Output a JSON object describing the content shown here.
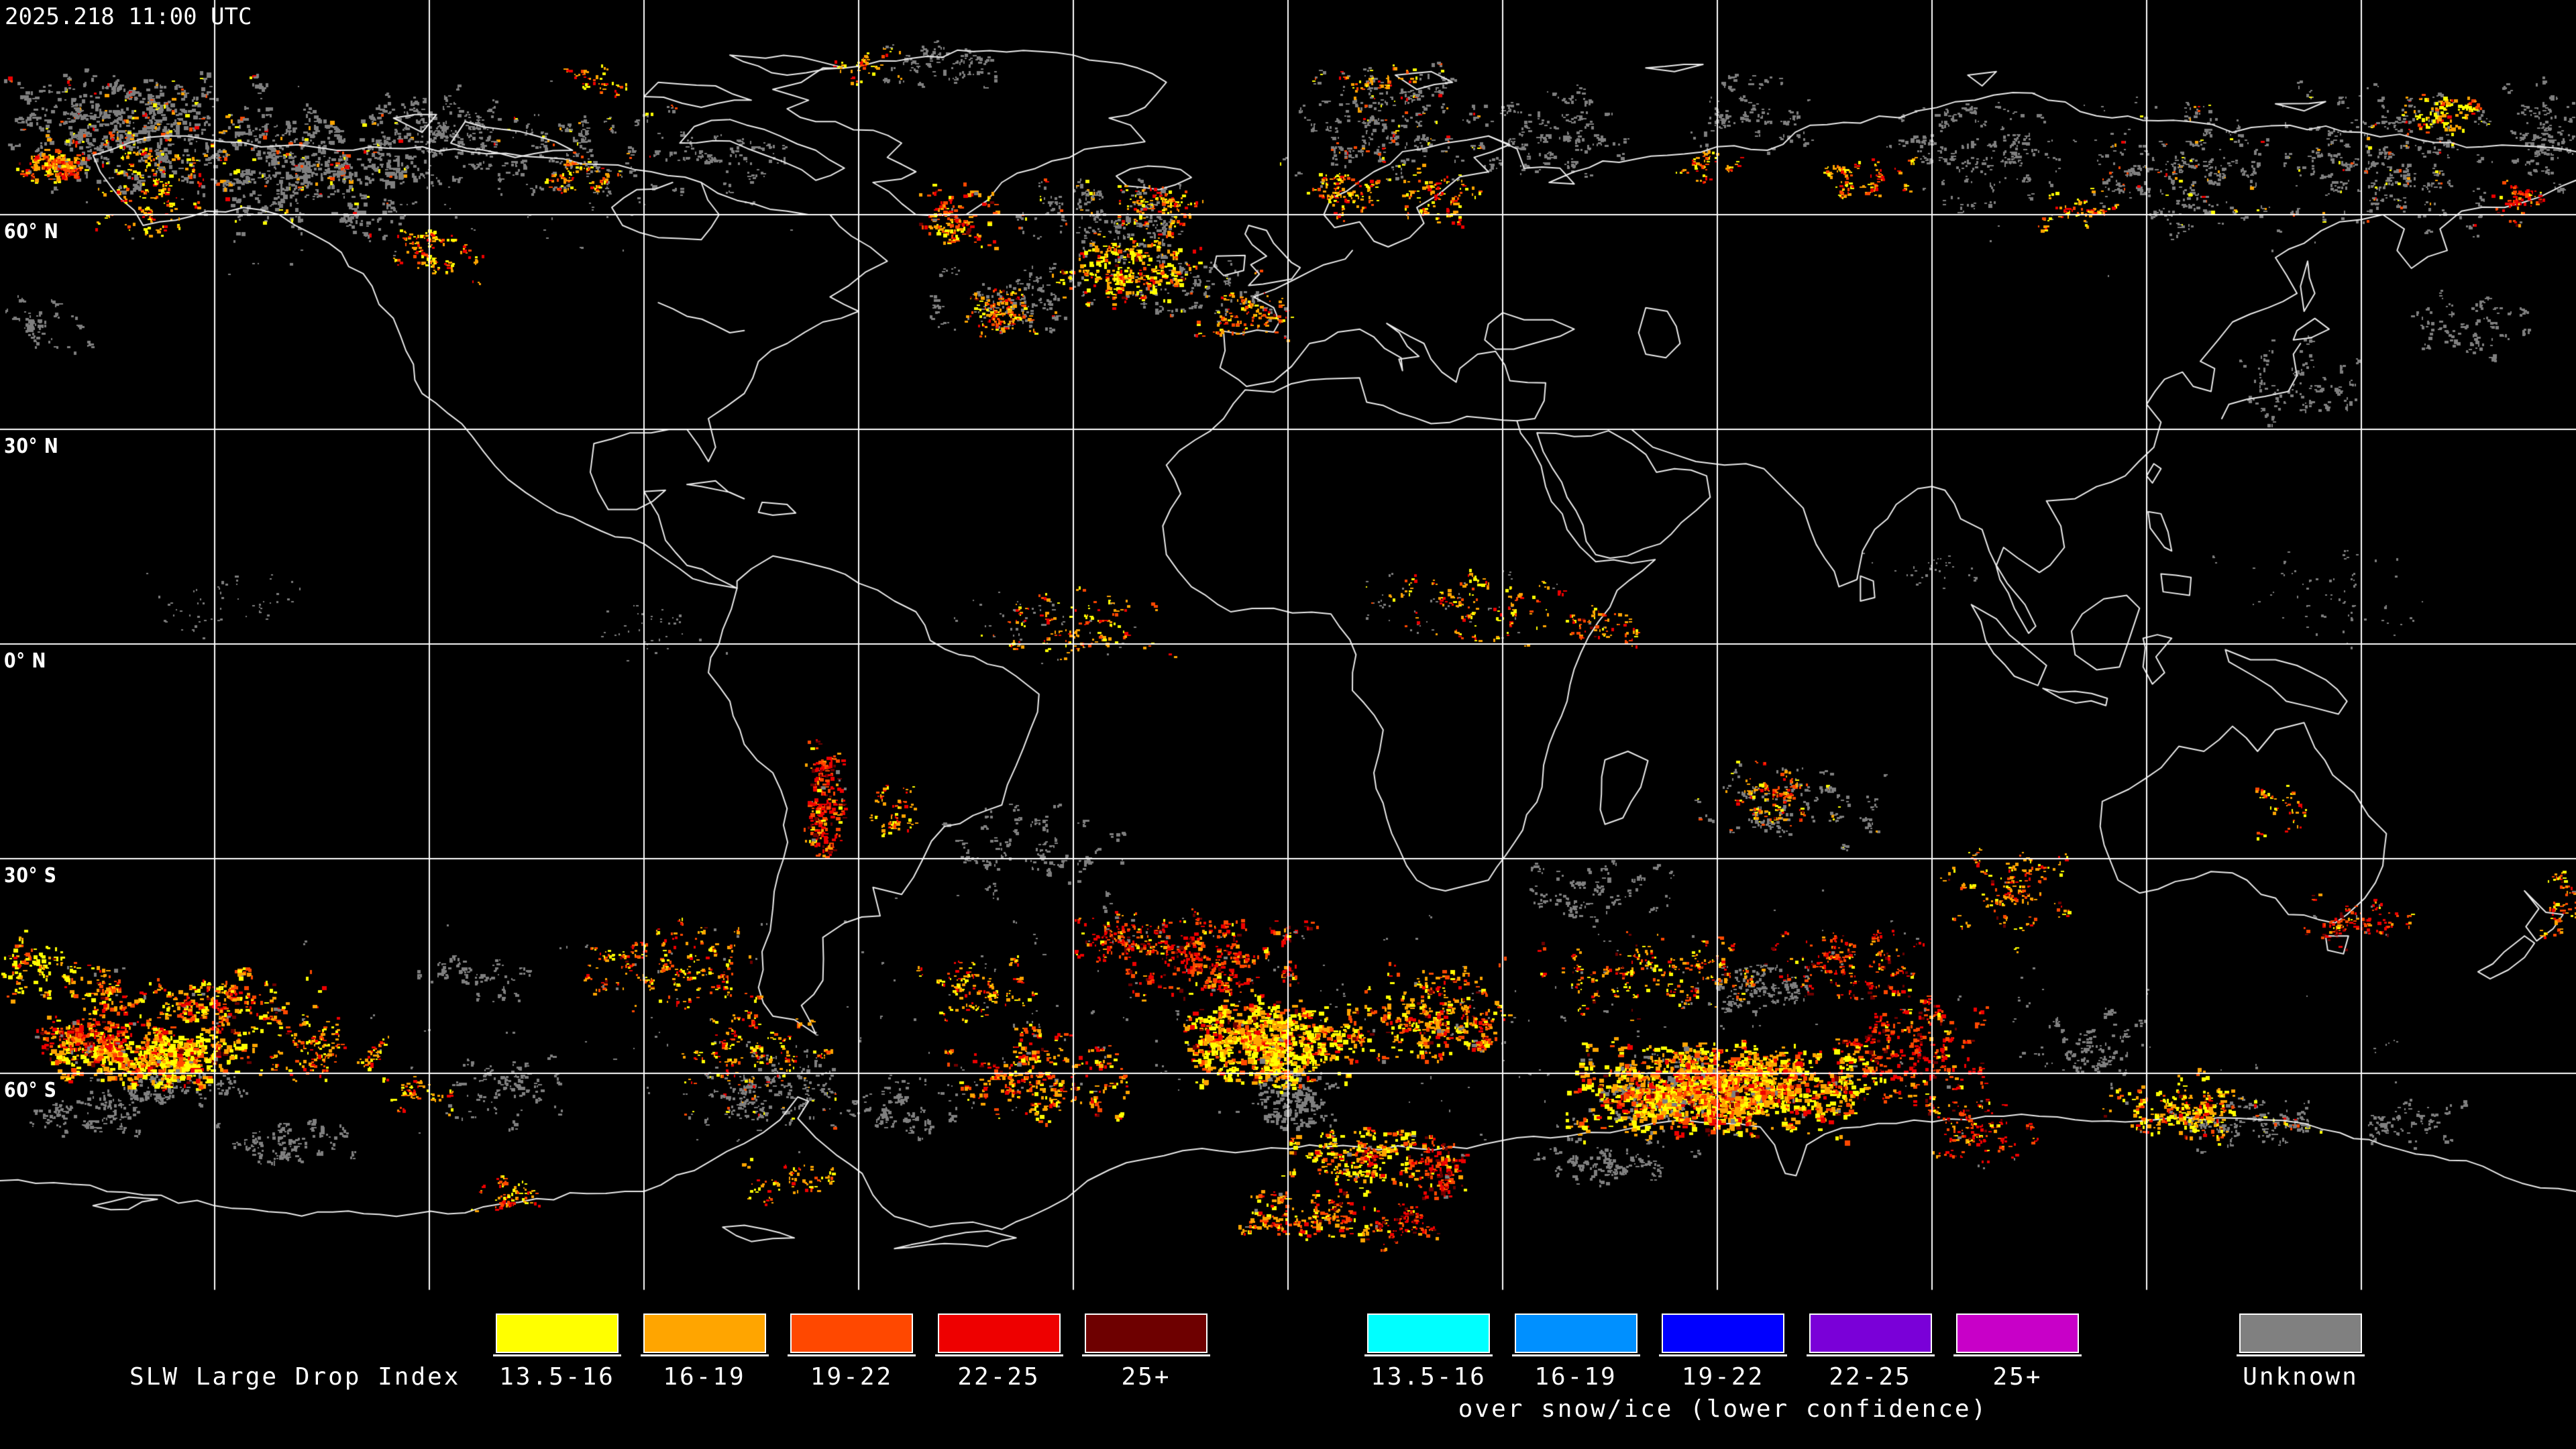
{
  "header": {
    "timestamp": "2025.218 11:00 UTC"
  },
  "map": {
    "latitude_labels": [
      {
        "label": "60° N",
        "lat": 60
      },
      {
        "label": "30° N",
        "lat": 30
      },
      {
        "label": "0° N",
        "lat": 0
      },
      {
        "label": "30° S",
        "lat": -30
      },
      {
        "label": "60° S",
        "lat": -60
      }
    ],
    "grid": {
      "lat_lines_deg": [
        60,
        30,
        0,
        -30,
        -60
      ],
      "lon_lines_deg": [
        -150,
        -120,
        -90,
        -60,
        -30,
        0,
        30,
        60,
        90,
        120,
        150
      ]
    },
    "colors": {
      "background": "#000000",
      "coastline": "#ECECEC",
      "gridline": "#FFFFFF",
      "index_13_16": "#FFFF00",
      "index_16_19": "#FFA500",
      "index_19_22": "#FF4800",
      "index_22_25": "#EE0000",
      "index_25plus": "#6E0000",
      "unknown": "#7F7F7F"
    },
    "palettes": {
      "gy": [
        [
          "#7F7F7F",
          1
        ]
      ],
      "gm": [
        [
          "#7F7F7F",
          0.86
        ],
        [
          "#FFFF00",
          0.05
        ],
        [
          "#FFA500",
          0.04
        ],
        [
          "#FF4800",
          0.03
        ],
        [
          "#EE0000",
          0.02
        ]
      ],
      "wc": [
        [
          "#FFFF00",
          0.44
        ],
        [
          "#FFA500",
          0.3
        ],
        [
          "#FF4800",
          0.14
        ],
        [
          "#EE0000",
          0.07
        ],
        [
          "#6E0000",
          0.03
        ],
        [
          "#7F7F7F",
          0.02
        ]
      ],
      "wm": [
        [
          "#FFA500",
          0.34
        ],
        [
          "#FF4800",
          0.26
        ],
        [
          "#FFFF00",
          0.18
        ],
        [
          "#EE0000",
          0.14
        ],
        [
          "#6E0000",
          0.05
        ],
        [
          "#7F7F7F",
          0.03
        ]
      ],
      "wr": [
        [
          "#EE0000",
          0.36
        ],
        [
          "#FF4800",
          0.28
        ],
        [
          "#6E0000",
          0.14
        ],
        [
          "#FFA500",
          0.14
        ],
        [
          "#FFFF00",
          0.05
        ],
        [
          "#7F7F7F",
          0.03
        ]
      ],
      "ws": [
        [
          "#FFA500",
          0.4
        ],
        [
          "#FFFF00",
          0.26
        ],
        [
          "#EE0000",
          0.18
        ],
        [
          "#FF4800",
          0.16
        ]
      ]
    },
    "regions": {
      "unknown": [
        [
          200,
          200,
          210,
          95,
          240,
          5,
          "gm"
        ],
        [
          470,
          255,
          170,
          110,
          170,
          5,
          "gm"
        ],
        [
          650,
          195,
          120,
          80,
          80,
          4,
          "gy"
        ],
        [
          860,
          230,
          150,
          80,
          60,
          4,
          "gm"
        ],
        [
          1080,
          240,
          120,
          70,
          35,
          4,
          "gy"
        ],
        [
          600,
          250,
          600,
          160,
          90,
          3,
          "gy"
        ],
        [
          1400,
          95,
          110,
          45,
          35,
          4,
          "gy"
        ],
        [
          1650,
          320,
          140,
          75,
          80,
          4,
          "gm"
        ],
        [
          1500,
          445,
          130,
          60,
          50,
          4,
          "gy"
        ],
        [
          1790,
          430,
          100,
          60,
          45,
          4,
          "gm"
        ],
        [
          2060,
          185,
          160,
          100,
          110,
          4,
          "gm"
        ],
        [
          2320,
          205,
          140,
          90,
          60,
          4,
          "gy"
        ],
        [
          2600,
          165,
          120,
          70,
          40,
          4,
          "gy"
        ],
        [
          2950,
          225,
          160,
          100,
          70,
          4,
          "gy"
        ],
        [
          3250,
          255,
          160,
          110,
          100,
          4,
          "gm"
        ],
        [
          3560,
          235,
          160,
          120,
          120,
          4,
          "gm"
        ],
        [
          3785,
          205,
          60,
          90,
          50,
          4,
          "gy"
        ],
        [
          3300,
          250,
          540,
          170,
          80,
          3,
          "gy"
        ],
        [
          3420,
          565,
          110,
          70,
          40,
          4,
          "gy"
        ],
        [
          60,
          485,
          80,
          50,
          25,
          4,
          "gy"
        ],
        [
          3700,
          485,
          120,
          60,
          35,
          4,
          "gy"
        ],
        [
          330,
          900,
          140,
          60,
          40,
          3,
          "gy"
        ],
        [
          980,
          945,
          130,
          50,
          28,
          3,
          "gy"
        ],
        [
          1560,
          930,
          150,
          60,
          35,
          3,
          "gm"
        ],
        [
          2160,
          905,
          160,
          70,
          40,
          3,
          "gm"
        ],
        [
          2860,
          850,
          110,
          50,
          22,
          3,
          "gy"
        ],
        [
          3460,
          880,
          170,
          90,
          50,
          3,
          "gy"
        ],
        [
          2660,
          1200,
          170,
          80,
          60,
          4,
          "gm"
        ],
        [
          1550,
          1270,
          150,
          90,
          50,
          4,
          "gy"
        ],
        [
          2390,
          1330,
          130,
          60,
          40,
          4,
          "gy"
        ],
        [
          1920,
          1530,
          1880,
          230,
          220,
          3,
          "gy"
        ],
        [
          420,
          1705,
          130,
          40,
          40,
          4,
          "gy"
        ],
        [
          130,
          1660,
          95,
          35,
          35,
          4,
          "gy"
        ],
        [
          1150,
          1620,
          130,
          75,
          80,
          4,
          "gm"
        ],
        [
          1350,
          1655,
          95,
          50,
          40,
          4,
          "gy"
        ],
        [
          1930,
          1640,
          65,
          45,
          50,
          5,
          "gy"
        ],
        [
          2455,
          1620,
          115,
          50,
          60,
          5,
          "gy"
        ],
        [
          2400,
          1730,
          130,
          35,
          45,
          4,
          "gy"
        ],
        [
          2610,
          1470,
          105,
          45,
          50,
          4,
          "gy"
        ],
        [
          3100,
          1560,
          95,
          75,
          40,
          4,
          "gy"
        ],
        [
          3350,
          1672,
          115,
          45,
          55,
          4,
          "gm"
        ],
        [
          3600,
          1670,
          95,
          40,
          30,
          4,
          "gy"
        ],
        [
          760,
          1625,
          105,
          60,
          35,
          4,
          "gy"
        ],
        [
          250,
          1628,
          125,
          30,
          45,
          4,
          "gy"
        ],
        [
          700,
          1455,
          95,
          50,
          26,
          4,
          "gy"
        ]
      ],
      "warm": [
        [
          75,
          248,
          62,
          26,
          45,
          5,
          "wm"
        ],
        [
          235,
          272,
          115,
          90,
          60,
          4,
          "ws"
        ],
        [
          645,
          382,
          85,
          50,
          35,
          4,
          "ws"
        ],
        [
          855,
          262,
          60,
          30,
          20,
          4,
          "ws"
        ],
        [
          1420,
          322,
          62,
          48,
          40,
          5,
          "wm"
        ],
        [
          1672,
          402,
          115,
          62,
          85,
          5,
          "wc"
        ],
        [
          1482,
          462,
          72,
          38,
          40,
          4,
          "wm"
        ],
        [
          1732,
          302,
          82,
          40,
          32,
          4,
          "ws"
        ],
        [
          1852,
          470,
          82,
          40,
          40,
          4,
          "wm"
        ],
        [
          2002,
          282,
          62,
          52,
          32,
          4,
          "ws"
        ],
        [
          2142,
          292,
          62,
          52,
          32,
          4,
          "ws"
        ],
        [
          2772,
          262,
          92,
          40,
          28,
          4,
          "ws"
        ],
        [
          3102,
          312,
          62,
          32,
          20,
          4,
          "ws"
        ],
        [
          3642,
          167,
          62,
          26,
          26,
          5,
          "wc"
        ],
        [
          3752,
          297,
          52,
          36,
          20,
          4,
          "wr"
        ],
        [
          1300,
          92,
          70,
          30,
          14,
          4,
          "ws"
        ],
        [
          2052,
          122,
          80,
          30,
          13,
          4,
          "ws"
        ],
        [
          882,
          122,
          70,
          30,
          13,
          4,
          "ws"
        ],
        [
          2552,
          242,
          52,
          30,
          16,
          4,
          "ws"
        ],
        [
          1610,
          932,
          155,
          62,
          42,
          4,
          "ws"
        ],
        [
          2210,
          905,
          170,
          70,
          42,
          4,
          "ws"
        ],
        [
          2392,
          932,
          62,
          32,
          20,
          4,
          "wm"
        ],
        [
          1225,
          1200,
          36,
          112,
          60,
          5,
          "wr"
        ],
        [
          1332,
          1212,
          42,
          52,
          20,
          4,
          "ws"
        ],
        [
          3002,
          1332,
          112,
          82,
          50,
          4,
          "wm"
        ],
        [
          3512,
          1372,
          92,
          42,
          32,
          4,
          "wr"
        ],
        [
          3812,
          1342,
          40,
          62,
          24,
          4,
          "wm"
        ],
        [
          62,
          1442,
          72,
          52,
          40,
          5,
          "wc"
        ],
        [
          162,
          1482,
          62,
          42,
          30,
          5,
          "wm"
        ],
        [
          1002,
          1442,
          162,
          72,
          75,
          4,
          "wm"
        ],
        [
          1122,
          1562,
          122,
          62,
          45,
          4,
          "ws"
        ],
        [
          1552,
          1602,
          142,
          82,
          90,
          5,
          "wm"
        ],
        [
          1452,
          1472,
          92,
          52,
          40,
          4,
          "ws"
        ],
        [
          222,
          1572,
          165,
          48,
          200,
          6,
          "wc"
        ],
        [
          335,
          1502,
          150,
          62,
          80,
          5,
          "wm"
        ],
        [
          122,
          1540,
          82,
          30,
          55,
          5,
          "wr"
        ],
        [
          482,
          1562,
          105,
          52,
          50,
          4,
          "ws"
        ],
        [
          1892,
          1552,
          145,
          72,
          240,
          6,
          "wc"
        ],
        [
          1802,
          1432,
          165,
          62,
          100,
          5,
          "wr"
        ],
        [
          2142,
          1522,
          135,
          92,
          120,
          5,
          "wm"
        ],
        [
          2022,
          1722,
          115,
          47,
          80,
          5,
          "wc"
        ],
        [
          2142,
          1742,
          62,
          47,
          40,
          5,
          "wr"
        ],
        [
          1702,
          1392,
          125,
          42,
          55,
          4,
          "wr"
        ],
        [
          2562,
          1622,
          255,
          82,
          340,
          6,
          "wc"
        ],
        [
          2562,
          1622,
          200,
          60,
          150,
          6,
          "wm"
        ],
        [
          2852,
          1562,
          125,
          102,
          100,
          5,
          "wr"
        ],
        [
          2452,
          1452,
          185,
          62,
          80,
          4,
          "wm"
        ],
        [
          2752,
          1432,
          125,
          62,
          60,
          4,
          "wr"
        ],
        [
          2952,
          1682,
          92,
          52,
          45,
          4,
          "wr"
        ],
        [
          3242,
          1652,
          115,
          52,
          70,
          5,
          "wc"
        ],
        [
          1952,
          1812,
          115,
          47,
          60,
          5,
          "wm"
        ],
        [
          2092,
          1822,
          52,
          42,
          28,
          4,
          "wr"
        ],
        [
          1182,
          1762,
          92,
          36,
          24,
          4,
          "ws"
        ],
        [
          752,
          1782,
          62,
          30,
          20,
          4,
          "ws"
        ],
        [
          622,
          1632,
          52,
          30,
          16,
          4,
          "ws"
        ],
        [
          2652,
          1182,
          62,
          47,
          28,
          4,
          "wm"
        ],
        [
          3402,
          1202,
          62,
          52,
          14,
          4,
          "ws"
        ]
      ]
    }
  },
  "legend": {
    "title": "SLW Large Drop Index",
    "bins": [
      {
        "label": "13.5-16",
        "color": "#FFFF00"
      },
      {
        "label": "16-19",
        "color": "#FFA500"
      },
      {
        "label": "19-22",
        "color": "#FF4800"
      },
      {
        "label": "22-25",
        "color": "#EE0000"
      },
      {
        "label": "25+",
        "color": "#6E0000"
      }
    ],
    "snow_bins": [
      {
        "label": "13.5-16",
        "color": "#00FFFF"
      },
      {
        "label": "16-19",
        "color": "#0090FF"
      },
      {
        "label": "19-22",
        "color": "#0000FF"
      },
      {
        "label": "22-25",
        "color": "#7A00D8"
      },
      {
        "label": "25+",
        "color": "#C800C8"
      }
    ],
    "snow_caption": "over snow/ice (lower confidence)",
    "unknown": {
      "label": "Unknown",
      "color": "#808080"
    }
  }
}
